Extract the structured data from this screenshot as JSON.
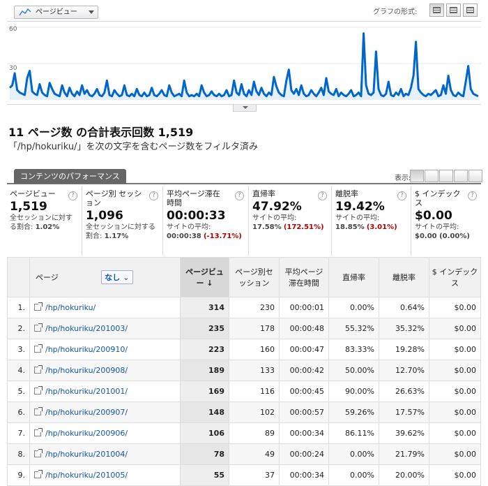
{
  "toolbar": {
    "metric_label": "ページビュー",
    "graph_format_label": "グラフの形式:"
  },
  "chart_data": {
    "type": "line",
    "ylim": [
      0,
      60
    ],
    "yticks": [
      "60",
      "30"
    ],
    "series": [
      {
        "color": "#0066cc",
        "values": [
          10,
          12,
          22,
          8,
          6,
          5,
          4,
          18,
          24,
          7,
          5,
          4,
          13,
          6,
          4,
          3,
          14,
          9,
          5,
          4,
          3,
          12,
          6,
          3,
          10,
          5,
          3,
          7,
          4,
          12,
          5,
          8,
          4,
          3,
          5,
          9,
          4,
          3,
          6,
          16,
          4,
          3,
          8,
          5,
          3,
          4,
          12,
          4,
          3,
          5,
          3,
          9,
          4,
          3,
          6,
          3,
          4,
          10,
          4,
          3,
          5,
          8,
          4,
          3,
          12,
          6,
          3,
          4,
          5,
          3,
          16,
          6,
          3,
          4,
          3,
          5,
          3,
          12,
          6,
          3,
          4,
          7,
          4,
          3,
          5,
          3,
          4,
          8,
          3,
          4,
          16,
          6,
          4,
          13,
          5,
          3,
          8,
          4,
          15,
          7,
          4,
          10,
          5,
          3,
          6,
          4,
          19,
          11,
          6,
          4,
          3,
          16,
          25,
          8,
          5,
          9,
          4,
          12,
          5,
          3,
          4,
          8,
          5,
          3,
          6,
          10,
          4,
          18,
          7,
          5,
          4,
          9,
          3,
          6,
          4,
          3,
          5,
          8,
          3,
          4,
          6,
          3,
          55,
          12,
          5,
          4,
          6,
          40,
          9,
          4,
          3,
          5,
          15,
          4,
          3,
          6,
          4,
          9,
          3,
          5,
          4,
          10,
          20,
          48,
          9,
          6,
          4,
          3,
          5,
          4,
          6,
          8,
          3,
          4,
          12,
          5,
          20,
          8,
          4,
          3,
          6,
          4,
          3,
          15,
          28,
          9,
          5,
          4,
          3
        ]
      }
    ]
  },
  "summary": {
    "title": "11 ページ数 の合計表示回数 1,519",
    "subtitle": "「/hp/hokuriku/」を次の文字を含むページ数をフィルタ済み"
  },
  "tabbar": {
    "tab_label": "コンテンツのパフォーマンス",
    "show_label": "表示:"
  },
  "scorecards": [
    {
      "label": "ページビュー",
      "value": "1,519",
      "cmp_text": "全セッションに対する割合:",
      "cmp_value": "1.02%",
      "cmp_delta": ""
    },
    {
      "label": "ページ別 セッション",
      "value": "1,096",
      "cmp_text": "全セッションに対する割合:",
      "cmp_value": "1.17%",
      "cmp_delta": ""
    },
    {
      "label": "平均ページ滞在時間",
      "value": "00:00:33",
      "cmp_text": "サイトの平均:",
      "cmp_value": "00:00:38",
      "cmp_delta": "(-13.71%)"
    },
    {
      "label": "直帰率",
      "value": "47.92%",
      "cmp_text": "サイトの平均:",
      "cmp_value": "17.58%",
      "cmp_delta": "(172.51%)"
    },
    {
      "label": "離脱率",
      "value": "19.42%",
      "cmp_text": "サイトの平均:",
      "cmp_value": "18.85%",
      "cmp_delta": "(3.01%)"
    },
    {
      "label": "$ インデックス",
      "value": "$0.00",
      "cmp_text": "サイトの平均:",
      "cmp_value": "$0.00 (0.00%)",
      "cmp_delta": ""
    }
  ],
  "table": {
    "headers": {
      "page": "ページ",
      "secondary": "なし",
      "pageviews": "ページビュー",
      "sessions": "ページ別セッション",
      "avg_time": "平均ページ滞在時間",
      "bounce": "直帰率",
      "exit": "離脱率",
      "index": "$ インデックス"
    },
    "rows": [
      {
        "idx": "1.",
        "page": "/hp/hokuriku/",
        "pv": "314",
        "sess": "230",
        "time": "00:00:01",
        "bounce": "0.00%",
        "exit": "0.64%",
        "index": "$0.00"
      },
      {
        "idx": "2.",
        "page": "/hp/hokuriku/201003/",
        "pv": "235",
        "sess": "178",
        "time": "00:00:48",
        "bounce": "55.32%",
        "exit": "35.32%",
        "index": "$0.00"
      },
      {
        "idx": "3.",
        "page": "/hp/hokuriku/200910/",
        "pv": "223",
        "sess": "160",
        "time": "00:00:47",
        "bounce": "83.33%",
        "exit": "19.28%",
        "index": "$0.00"
      },
      {
        "idx": "4.",
        "page": "/hp/hokuriku/200908/",
        "pv": "189",
        "sess": "133",
        "time": "00:00:42",
        "bounce": "50.00%",
        "exit": "12.70%",
        "index": "$0.00"
      },
      {
        "idx": "5.",
        "page": "/hp/hokuriku/201001/",
        "pv": "169",
        "sess": "116",
        "time": "00:00:45",
        "bounce": "90.00%",
        "exit": "26.63%",
        "index": "$0.00"
      },
      {
        "idx": "6.",
        "page": "/hp/hokuriku/200907/",
        "pv": "148",
        "sess": "102",
        "time": "00:00:57",
        "bounce": "59.26%",
        "exit": "17.57%",
        "index": "$0.00"
      },
      {
        "idx": "7.",
        "page": "/hp/hokuriku/200906/",
        "pv": "106",
        "sess": "89",
        "time": "00:00:34",
        "bounce": "86.11%",
        "exit": "39.62%",
        "index": "$0.00"
      },
      {
        "idx": "8.",
        "page": "/hp/hokuriku/201004/",
        "pv": "78",
        "sess": "49",
        "time": "00:00:24",
        "bounce": "0.00%",
        "exit": "21.79%",
        "index": "$0.00"
      },
      {
        "idx": "9.",
        "page": "/hp/hokuriku/201005/",
        "pv": "55",
        "sess": "37",
        "time": "00:00:34",
        "bounce": "0.00%",
        "exit": "20.00%",
        "index": "$0.00"
      }
    ]
  }
}
